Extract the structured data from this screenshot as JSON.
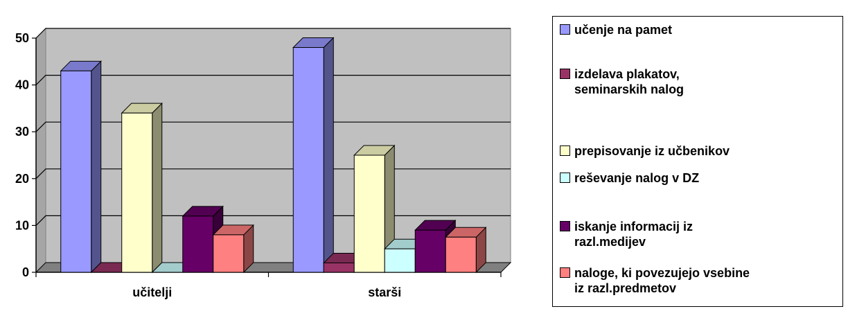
{
  "chart_data": {
    "type": "bar",
    "categories": [
      "učitelji",
      "starši"
    ],
    "ylim": [
      0,
      50
    ],
    "yticks": [
      0,
      10,
      20,
      30,
      40,
      50
    ],
    "series": [
      {
        "name": "učenje na pamet",
        "values": [
          43,
          48
        ],
        "color": "#9999ff"
      },
      {
        "name": "izdelava plakatov,\nseminarskih nalog",
        "values": [
          0,
          2
        ],
        "color": "#993366"
      },
      {
        "name": "prepisovanje iz učbenikov",
        "values": [
          34,
          25
        ],
        "color": "#ffffcc"
      },
      {
        "name": "reševanje nalog v DZ",
        "values": [
          0,
          5
        ],
        "color": "#ccffff"
      },
      {
        "name": "iskanje informacij iz\nrazl.medijev",
        "values": [
          12,
          9
        ],
        "color": "#660066"
      },
      {
        "name": "naloge, ki povezujejo vsebine\niz razl.predmetov",
        "values": [
          8,
          7.5
        ],
        "color": "#ff8080"
      }
    ],
    "grid": true,
    "legend": "right",
    "wall_color": "#c0c0c0",
    "title": "",
    "xlabel": "",
    "ylabel": ""
  }
}
